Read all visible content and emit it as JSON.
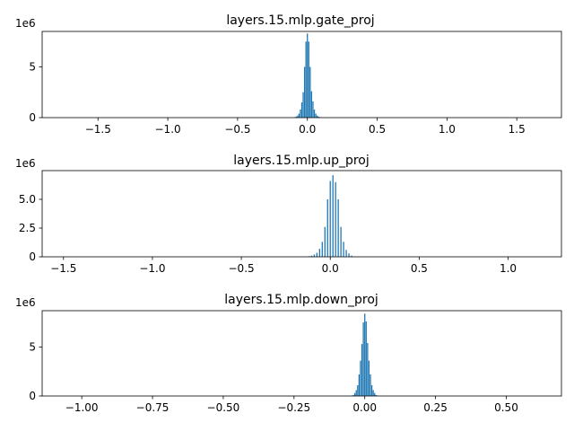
{
  "chart_data": [
    {
      "type": "bar",
      "title": "layers.15.mlp.gate_proj",
      "y_offset_label": "1e6",
      "bar_color": "#1f77b4",
      "xlim": [
        -1.9,
        1.82
      ],
      "ylim": [
        0,
        8.5
      ],
      "xticks": [
        -1.5,
        -1.0,
        -0.5,
        0.0,
        0.5,
        1.0,
        1.5
      ],
      "xtick_labels": [
        "−1.5",
        "−1.0",
        "−0.5",
        "0.0",
        "0.5",
        "1.0",
        "1.5"
      ],
      "yticks": [
        0,
        5
      ],
      "ytick_labels": [
        "0",
        "5"
      ],
      "bin_width": 0.0083,
      "x": [
        -0.09,
        -0.08,
        -0.07,
        -0.06,
        -0.05,
        -0.04,
        -0.03,
        -0.02,
        -0.01,
        0.0,
        0.01,
        0.02,
        0.03,
        0.04,
        0.05,
        0.06,
        0.07,
        0.08,
        0.09
      ],
      "values": [
        0.05,
        0.1,
        0.2,
        0.4,
        0.8,
        1.5,
        2.5,
        5.0,
        7.5,
        8.3,
        7.5,
        5.0,
        2.6,
        1.6,
        0.8,
        0.4,
        0.2,
        0.1,
        0.05
      ]
    },
    {
      "type": "bar",
      "title": "layers.15.mlp.up_proj",
      "y_offset_label": "1e6",
      "bar_color": "#1f77b4",
      "xlim": [
        -1.62,
        1.3
      ],
      "ylim": [
        0,
        7.5
      ],
      "xticks": [
        -1.5,
        -1.0,
        -0.5,
        0.0,
        0.5,
        1.0
      ],
      "xtick_labels": [
        "−1.5",
        "−1.0",
        "−0.5",
        "0.0",
        "0.5",
        "1.0"
      ],
      "yticks": [
        0,
        2.5,
        5.0
      ],
      "ytick_labels": [
        "0",
        "2.5",
        "5.0"
      ],
      "bin_width": 0.0065,
      "x": [
        -0.12,
        -0.105,
        -0.09,
        -0.075,
        -0.06,
        -0.045,
        -0.03,
        -0.015,
        0.0,
        0.015,
        0.03,
        0.045,
        0.06,
        0.075,
        0.09,
        0.105,
        0.12
      ],
      "values": [
        0.05,
        0.1,
        0.2,
        0.35,
        0.7,
        1.3,
        2.6,
        5.0,
        6.6,
        7.1,
        6.5,
        5.0,
        2.6,
        1.3,
        0.6,
        0.3,
        0.1
      ]
    },
    {
      "type": "bar",
      "title": "layers.15.mlp.down_proj",
      "y_offset_label": "1e6",
      "bar_color": "#1f77b4",
      "xlim": [
        -1.14,
        0.695
      ],
      "ylim": [
        0,
        8.7
      ],
      "xticks": [
        -1.0,
        -0.75,
        -0.5,
        -0.25,
        0.0,
        0.25,
        0.5
      ],
      "xtick_labels": [
        "−1.00",
        "−0.75",
        "−0.50",
        "−0.25",
        "0.00",
        "0.25",
        "0.50"
      ],
      "yticks": [
        0,
        5
      ],
      "ytick_labels": [
        "0",
        "5"
      ],
      "bin_width": 0.0041,
      "x": [
        -0.045,
        -0.04,
        -0.035,
        -0.03,
        -0.025,
        -0.02,
        -0.015,
        -0.01,
        -0.005,
        0.0,
        0.005,
        0.01,
        0.015,
        0.02,
        0.025,
        0.03,
        0.035,
        0.04,
        0.045
      ],
      "values": [
        0.05,
        0.1,
        0.3,
        0.6,
        1.1,
        2.2,
        3.6,
        5.3,
        7.5,
        8.4,
        7.6,
        5.4,
        3.6,
        2.2,
        1.1,
        0.6,
        0.3,
        0.1,
        0.05
      ]
    }
  ]
}
